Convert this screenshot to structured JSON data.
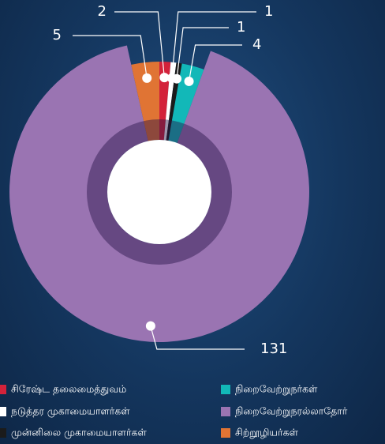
{
  "chart_data": {
    "type": "donut",
    "categories": [
      "சிரேஷ்ட தலைமைத்துவம்",
      "நடுத்தர முகாமையாளர்கள்",
      "முன்னிலை முகாமையாளர்கள்",
      "நிறைவேற்றுநர்கள்",
      "நிறைவேற்றுநரல்லாதோர்",
      "சிற்றூழியர்கள்"
    ],
    "values": [
      2,
      1,
      1,
      4,
      131,
      5
    ],
    "colors": [
      "#d3223a",
      "#ffffff",
      "#1b1b1b",
      "#12b8b8",
      "#9a74b2",
      "#e07434"
    ],
    "legend": "bottom"
  }
}
